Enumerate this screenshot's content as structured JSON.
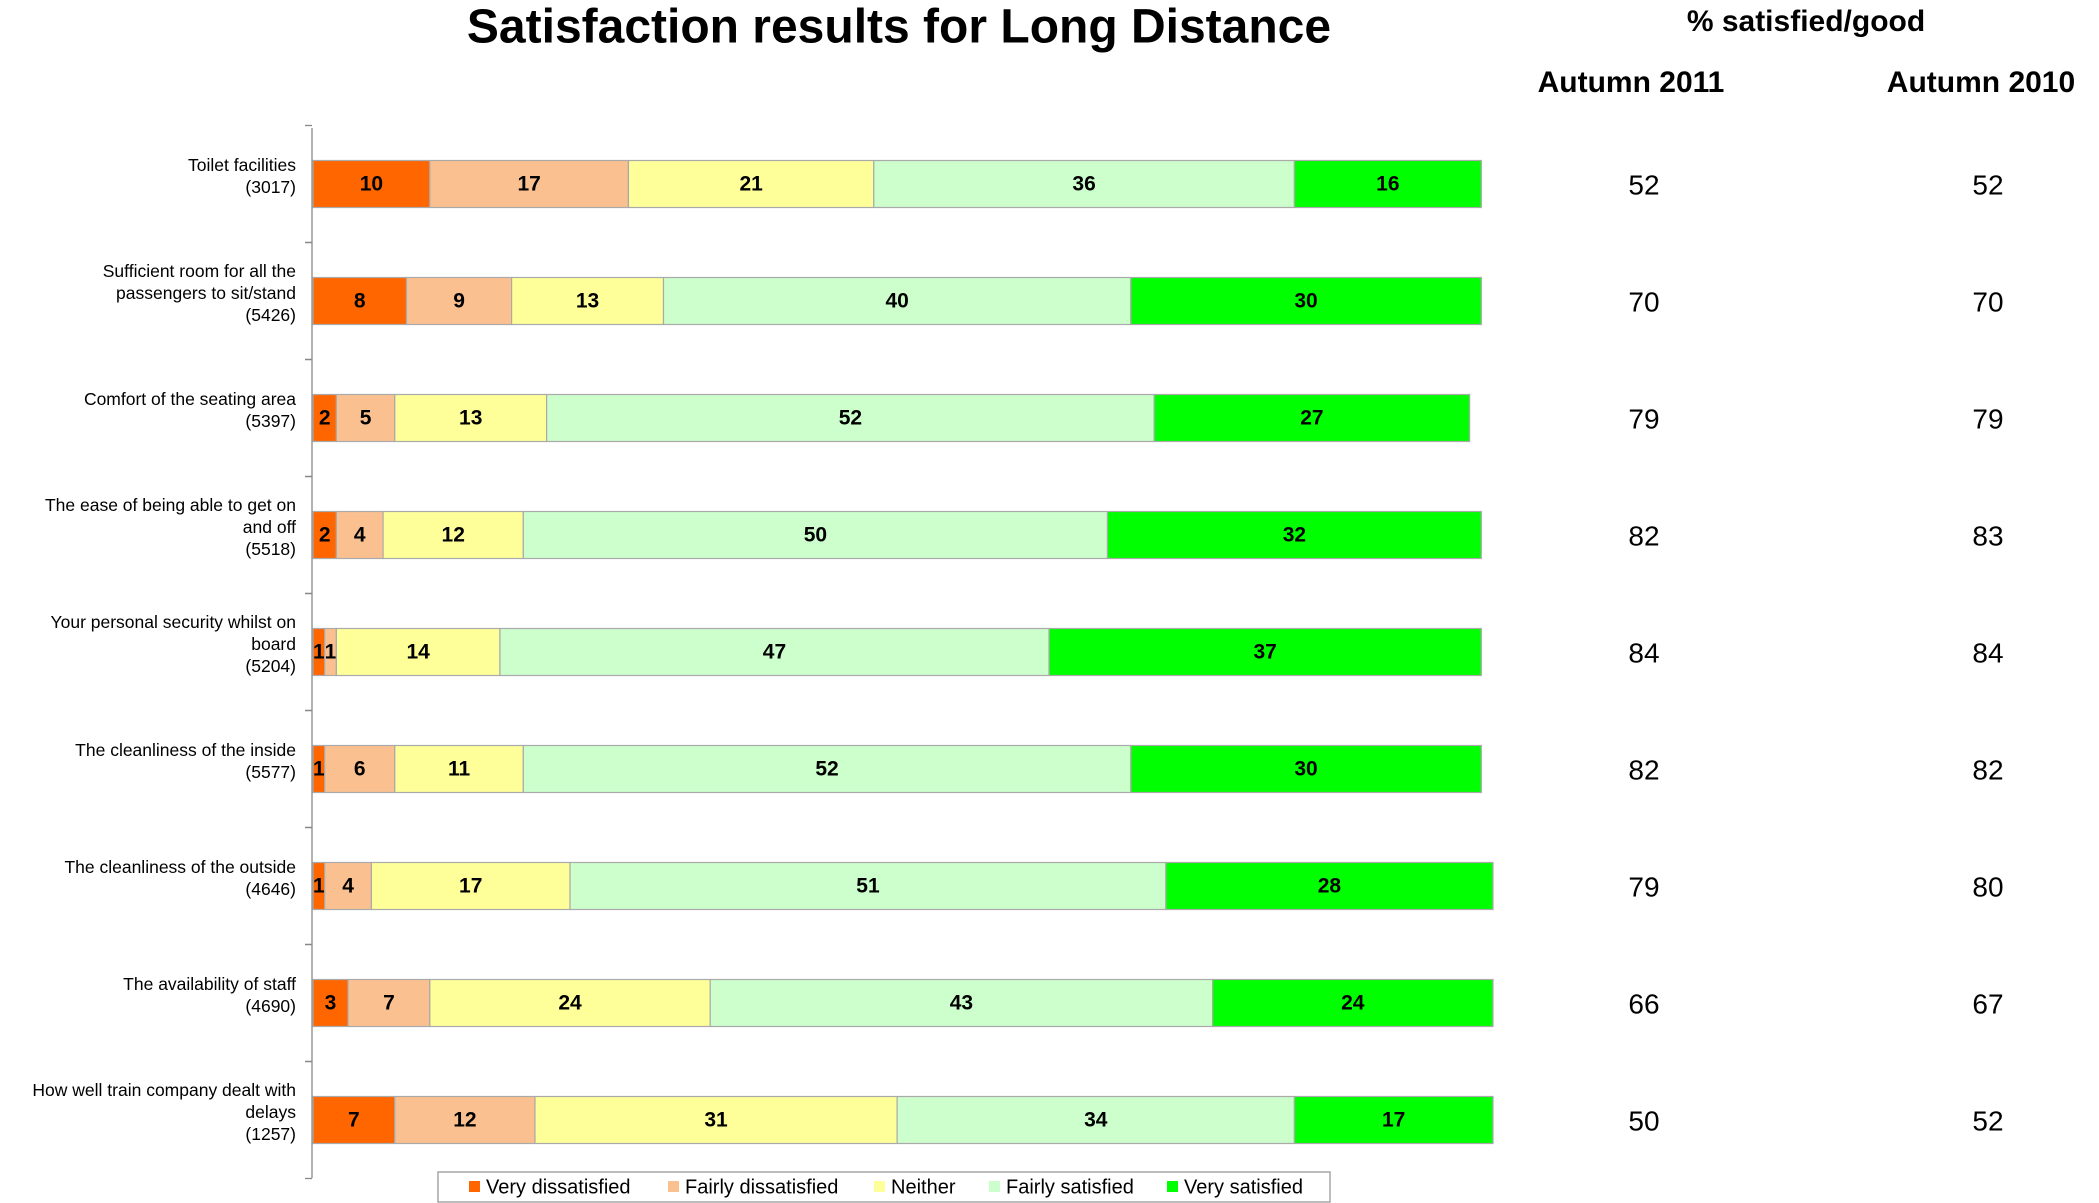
{
  "chart_data": {
    "type": "stacked_bar_horizontal",
    "title": "Satisfaction results for Long Distance",
    "categories": [
      "Toilet facilities\n(3017)",
      "Sufficient room for all the\npassengers to sit/stand\n(5426)",
      "Comfort of the seating area\n(5397)",
      "The ease of being able to get on\nand off\n(5518)",
      "Your personal security whilst on\nboard\n(5204)",
      "The cleanliness of the inside\n(5577)",
      "The cleanliness of the outside\n(4646)",
      "The availability of  staff\n(4690)",
      "How well train company dealt with\ndelays\n(1257)"
    ],
    "series": [
      {
        "name": "Very dissatisfied",
        "color": "#ff6600",
        "values": [
          10,
          8,
          2,
          2,
          1,
          1,
          1,
          3,
          7
        ]
      },
      {
        "name": "Fairly dissatisfied",
        "color": "#fac090",
        "values": [
          17,
          9,
          5,
          4,
          1,
          6,
          4,
          7,
          12
        ]
      },
      {
        "name": "Neither",
        "color": "#ffff99",
        "values": [
          21,
          13,
          13,
          12,
          14,
          11,
          17,
          24,
          31
        ]
      },
      {
        "name": "Fairly satisfied",
        "color": "#ccffcc",
        "values": [
          36,
          40,
          52,
          50,
          47,
          52,
          51,
          43,
          34
        ]
      },
      {
        "name": "Very satisfied",
        "color": "#00ff00",
        "values": [
          16,
          30,
          27,
          32,
          37,
          30,
          28,
          24,
          17
        ]
      }
    ],
    "table_header": "% satisfied/good",
    "columns": [
      {
        "name": "Autumn 2011",
        "values": [
          52,
          70,
          79,
          82,
          84,
          82,
          79,
          66,
          50
        ]
      },
      {
        "name": "Autumn 2010",
        "values": [
          52,
          70,
          79,
          83,
          84,
          82,
          80,
          67,
          52
        ]
      }
    ],
    "legend": "bottom"
  }
}
